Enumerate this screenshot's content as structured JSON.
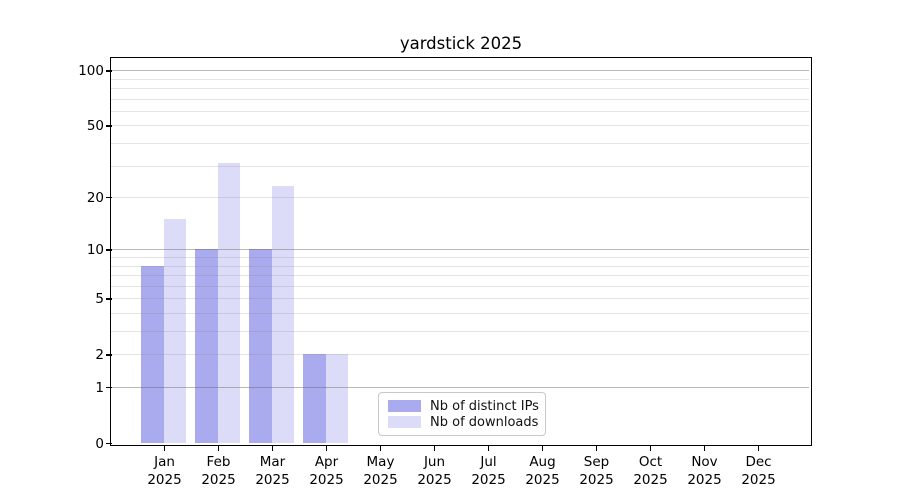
{
  "chart_data": {
    "type": "bar",
    "title": "yardstick 2025",
    "categories": [
      "Jan",
      "Feb",
      "Mar",
      "Apr",
      "May",
      "Jun",
      "Jul",
      "Aug",
      "Sep",
      "Oct",
      "Nov",
      "Dec"
    ],
    "year_label": "2025",
    "series": [
      {
        "name": "Nb of distinct IPs",
        "color": "#aaaaee",
        "values": [
          8,
          10,
          10,
          2,
          0,
          0,
          0,
          0,
          0,
          0,
          0,
          0
        ]
      },
      {
        "name": "Nb of downloads",
        "color": "#dcdcf8",
        "values": [
          15,
          31,
          23,
          2,
          0,
          0,
          0,
          0,
          0,
          0,
          0,
          0
        ]
      }
    ],
    "yscale": "log1p",
    "ylim": [
      0,
      113
    ],
    "ytick_values": [
      100,
      50,
      20,
      10,
      5,
      2,
      1,
      0
    ],
    "ytick_labels": [
      "100",
      "50",
      "20",
      "10",
      "5",
      "2",
      "1",
      "0"
    ],
    "major_gridlines": [
      1,
      10,
      100
    ],
    "minor_gridlines": [
      2,
      3,
      4,
      5,
      6,
      7,
      8,
      9,
      20,
      30,
      40,
      50,
      60,
      70,
      80,
      90
    ],
    "grid": "on",
    "xlabel": "",
    "ylabel": "",
    "legend": {
      "position": "lower center",
      "entries": [
        "Nb of distinct IPs",
        "Nb of downloads"
      ]
    },
    "colors": {
      "axis": "#000000",
      "major_grid": "#b9b9b9",
      "minor_grid": "#e3e3e3"
    }
  }
}
